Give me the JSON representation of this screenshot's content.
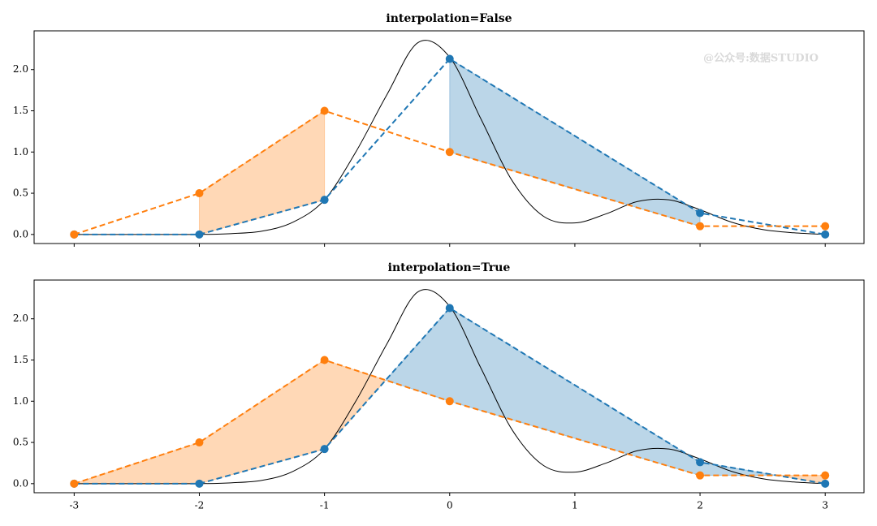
{
  "chart_data": [
    {
      "type": "line",
      "title": "interpolation=False",
      "watermark": "@公众号:数据STUDIO",
      "interpolate": false,
      "fill_alpha": 0.3,
      "show_xtick_labels": false,
      "x": [
        -3,
        -2,
        -1,
        0,
        2,
        3
      ],
      "series": [
        {
          "color": "#1f77b4",
          "values": [
            0,
            0,
            0.42,
            2.13,
            0.26,
            0
          ],
          "dashed": true,
          "markers": true,
          "fill": true
        },
        {
          "color": "#ff7f0e",
          "values": [
            0,
            0.5,
            1.5,
            1.0,
            0.1,
            0.1
          ],
          "dashed": true,
          "markers": true,
          "fill": true
        },
        {
          "color": "#000000",
          "x": [
            -3,
            -2.75,
            -2.5,
            -2.25,
            -2,
            -1.75,
            -1.5,
            -1.25,
            -1,
            -0.75,
            -0.5,
            -0.25,
            0,
            0.25,
            0.5,
            0.75,
            1,
            1.25,
            1.5,
            1.75,
            2,
            2.25,
            2.5,
            2.75,
            3
          ],
          "values": [
            0,
            0,
            0,
            0,
            0,
            0.01,
            0.04,
            0.15,
            0.42,
            1.0,
            1.7,
            2.33,
            2.15,
            1.4,
            0.65,
            0.22,
            0.14,
            0.25,
            0.4,
            0.42,
            0.3,
            0.15,
            0.06,
            0.02,
            0
          ],
          "dashed": false,
          "markers": false,
          "fill": false
        }
      ],
      "xlim": [
        -3.32,
        3.31
      ],
      "xticks": [
        -3,
        -2,
        -1,
        0,
        1,
        2,
        3
      ],
      "ylim": [
        -0.11,
        2.47
      ],
      "yticks": [
        {
          "value": 0,
          "label": "0.0"
        },
        {
          "value": 0.5,
          "label": "0.5"
        },
        {
          "value": 1,
          "label": "1.0"
        },
        {
          "value": 1.5,
          "label": "1.5"
        },
        {
          "value": 2,
          "label": "2.0"
        }
      ]
    },
    {
      "type": "line",
      "title": "interpolation=True",
      "interpolate": true,
      "fill_alpha": 0.3,
      "show_xtick_labels": true,
      "x": [
        -3,
        -2,
        -1,
        0,
        2,
        3
      ],
      "series": [
        {
          "color": "#1f77b4",
          "values": [
            0,
            0,
            0.42,
            2.13,
            0.26,
            0
          ],
          "dashed": true,
          "markers": true,
          "fill": true
        },
        {
          "color": "#ff7f0e",
          "values": [
            0,
            0.5,
            1.5,
            1.0,
            0.1,
            0.1
          ],
          "dashed": true,
          "markers": true,
          "fill": true
        },
        {
          "color": "#000000",
          "x": [
            -3,
            -2.75,
            -2.5,
            -2.25,
            -2,
            -1.75,
            -1.5,
            -1.25,
            -1,
            -0.75,
            -0.5,
            -0.25,
            0,
            0.25,
            0.5,
            0.75,
            1,
            1.25,
            1.5,
            1.75,
            2,
            2.25,
            2.5,
            2.75,
            3
          ],
          "values": [
            0,
            0,
            0,
            0,
            0,
            0.01,
            0.04,
            0.15,
            0.42,
            1.0,
            1.7,
            2.33,
            2.15,
            1.4,
            0.65,
            0.22,
            0.14,
            0.25,
            0.4,
            0.42,
            0.3,
            0.15,
            0.06,
            0.02,
            0
          ],
          "dashed": false,
          "markers": false,
          "fill": false
        }
      ],
      "xlim": [
        -3.32,
        3.31
      ],
      "xticks": [
        -3,
        -2,
        -1,
        0,
        1,
        2,
        3
      ],
      "ylim": [
        -0.11,
        2.47
      ],
      "yticks": [
        {
          "value": 0,
          "label": "0.0"
        },
        {
          "value": 0.5,
          "label": "0.5"
        },
        {
          "value": 1,
          "label": "1.0"
        },
        {
          "value": 1.5,
          "label": "1.5"
        },
        {
          "value": 2,
          "label": "2.0"
        }
      ]
    }
  ]
}
